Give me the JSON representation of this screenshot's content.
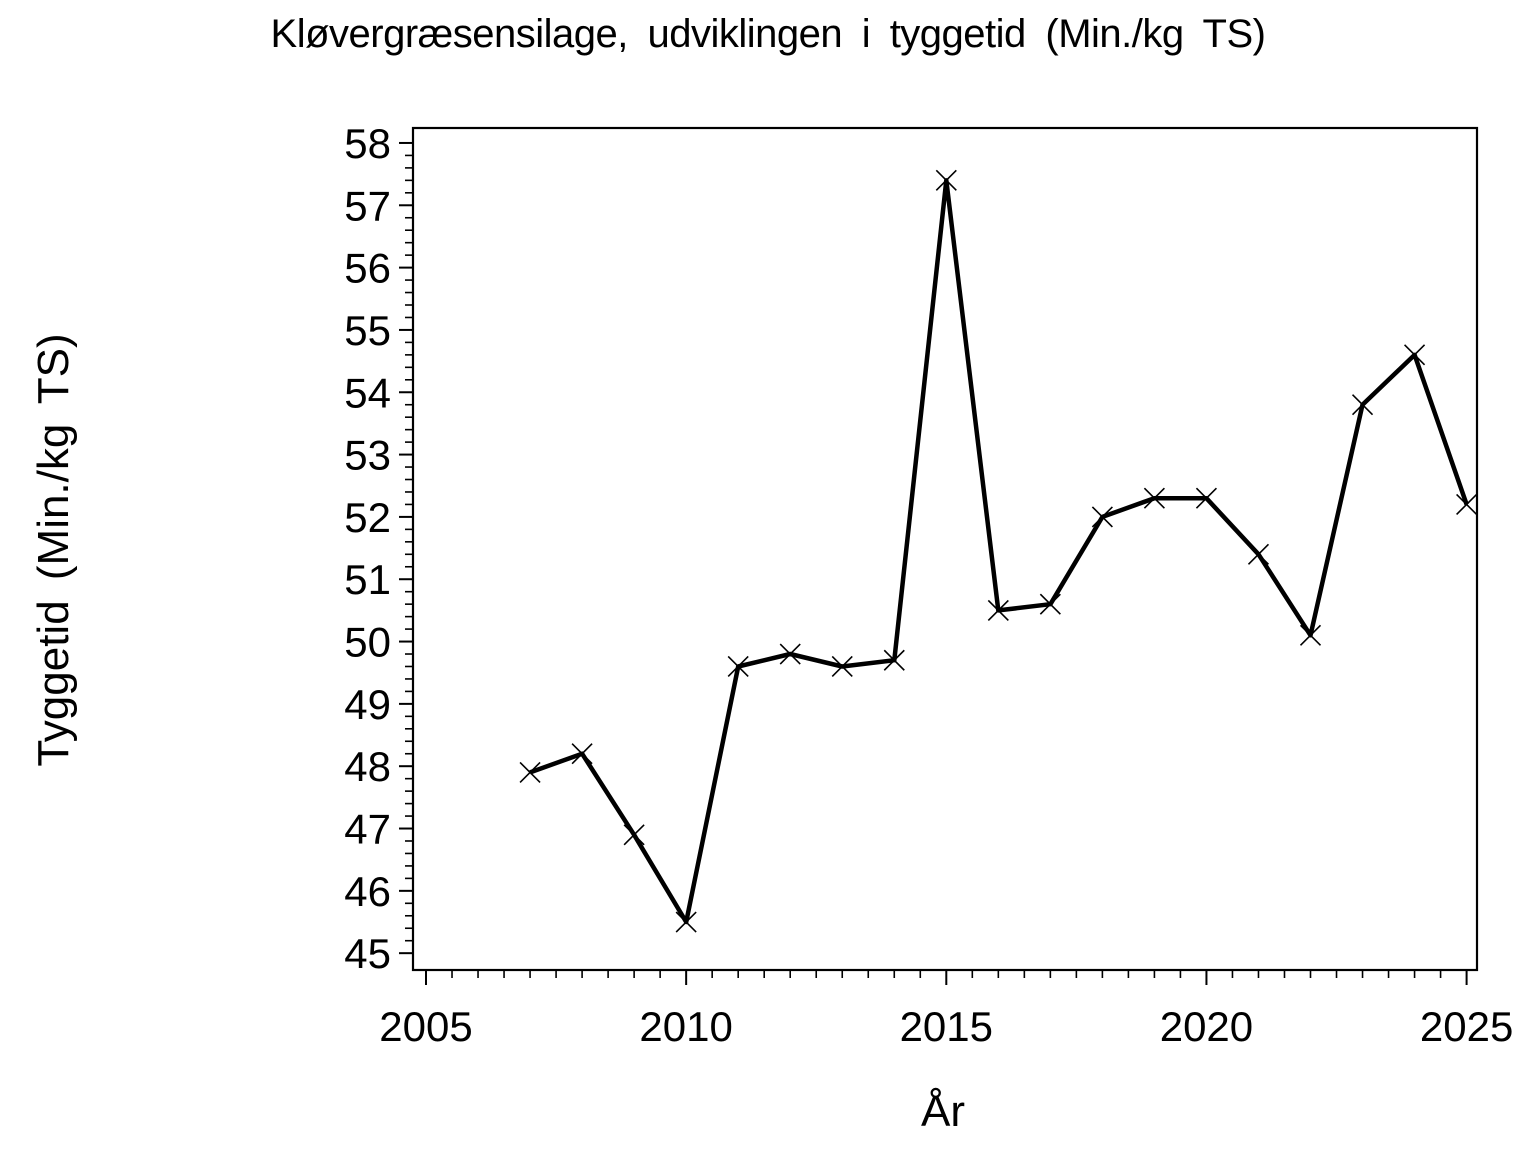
{
  "chart_data": {
    "type": "line",
    "title": "Kløvergræsensilage, udviklingen i tyggetid (Min./kg TS)",
    "xlabel": "År",
    "ylabel": "Tyggetid (Min./kg TS)",
    "x": [
      2007,
      2008,
      2009,
      2010,
      2011,
      2012,
      2013,
      2014,
      2015,
      2016,
      2017,
      2018,
      2019,
      2020,
      2021,
      2022,
      2023,
      2024,
      2025
    ],
    "values": [
      47.9,
      48.2,
      46.9,
      45.5,
      49.6,
      49.8,
      49.6,
      49.7,
      57.4,
      50.5,
      50.6,
      52.0,
      52.3,
      52.3,
      51.4,
      50.1,
      53.8,
      54.6,
      52.2
    ],
    "series_name": "Tyggetid",
    "xlim": [
      2004.75,
      2025.2
    ],
    "ylim": [
      44.73,
      58.24
    ],
    "x_major_ticks": [
      2005,
      2010,
      2015,
      2020,
      2025
    ],
    "x_minor_step": 0.5,
    "y_major_ticks": [
      45,
      46,
      47,
      48,
      49,
      50,
      51,
      52,
      53,
      54,
      55,
      56,
      57,
      58
    ],
    "y_minor_step": 0.2,
    "marker": "x",
    "line_color": "#000000",
    "text_color": "#000000",
    "background_color": "#ffffff",
    "grid": false,
    "legend_position": "none"
  }
}
